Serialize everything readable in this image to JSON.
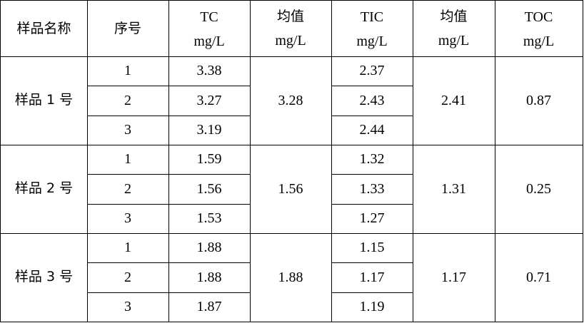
{
  "table": {
    "header": {
      "sample_name": "样品名称",
      "seq": "序号",
      "tc": "TC",
      "tc_unit": "mg/L",
      "avg1": "均值",
      "avg1_unit": "mg/L",
      "tic": "TIC",
      "tic_unit": "mg/L",
      "avg2": "均值",
      "avg2_unit": "mg/L",
      "toc": "TOC",
      "toc_unit": "mg/L"
    },
    "groups": [
      {
        "name": "样品 1 号",
        "rows": [
          {
            "seq": "1",
            "tc": "3.38",
            "tic": "2.37"
          },
          {
            "seq": "2",
            "tc": "3.27",
            "tic": "2.43"
          },
          {
            "seq": "3",
            "tc": "3.19",
            "tic": "2.44"
          }
        ],
        "tc_avg": "3.28",
        "tic_avg": "2.41",
        "toc": "0.87"
      },
      {
        "name": "样品 2 号",
        "rows": [
          {
            "seq": "1",
            "tc": "1.59",
            "tic": "1.32"
          },
          {
            "seq": "2",
            "tc": "1.56",
            "tic": "1.33"
          },
          {
            "seq": "3",
            "tc": "1.53",
            "tic": "1.27"
          }
        ],
        "tc_avg": "1.56",
        "tic_avg": "1.31",
        "toc": "0.25"
      },
      {
        "name": "样品 3 号",
        "rows": [
          {
            "seq": "1",
            "tc": "1.88",
            "tic": "1.15"
          },
          {
            "seq": "2",
            "tc": "1.88",
            "tic": "1.17"
          },
          {
            "seq": "3",
            "tc": "1.87",
            "tic": "1.19"
          }
        ],
        "tc_avg": "1.88",
        "tic_avg": "1.17",
        "toc": "0.71"
      }
    ]
  }
}
